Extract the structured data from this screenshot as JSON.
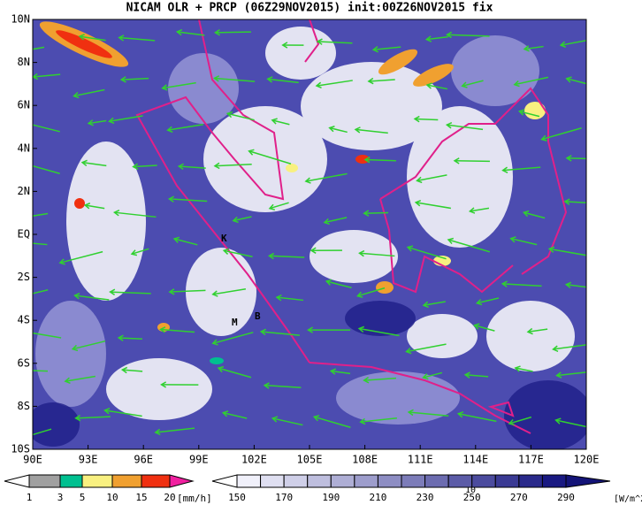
{
  "title": "NICAM OLR + PRCP (06Z29NOV2015) init:00Z26NOV2015 fix",
  "map": {
    "x_labels": [
      "90E",
      "93E",
      "96E",
      "99E",
      "102E",
      "105E",
      "108E",
      "111E",
      "114E",
      "117E",
      "120E"
    ],
    "y_labels": [
      "10N",
      "8N",
      "6N",
      "4N",
      "2N",
      "EQ",
      "2S",
      "4S",
      "6S",
      "8S",
      "10S"
    ],
    "places": [
      "K",
      "M",
      "B"
    ]
  },
  "legend_precip": {
    "labels": [
      "1",
      "3",
      "5",
      "10",
      "15",
      "20"
    ],
    "unit": "[mm/h]"
  },
  "legend_olr": {
    "labels": [
      "150",
      "170",
      "190",
      "210",
      "230",
      "250",
      "270",
      "290"
    ],
    "unit": "[W/m^2]",
    "reference_vector": "10"
  }
}
